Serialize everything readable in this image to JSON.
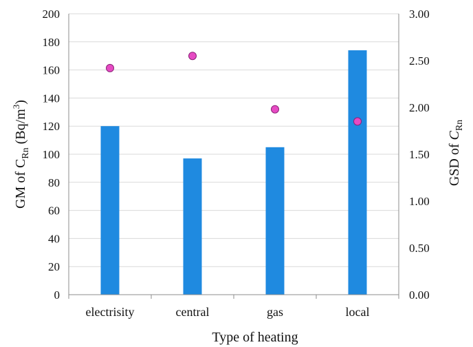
{
  "chart_data": {
    "type": "bar",
    "categories": [
      "electrisity",
      "central",
      "gas",
      "local"
    ],
    "series": [
      {
        "values": [
          120,
          97,
          105,
          174
        ],
        "color": "#1f8ae0",
        "axis": "left",
        "kind": "bar"
      },
      {
        "values": [
          2.42,
          2.55,
          1.98,
          1.85
        ],
        "color": "#e64bc3",
        "axis": "right",
        "kind": "scatter"
      }
    ],
    "xlabel": "Type  of heating",
    "ylabel": {
      "main": "GM of C",
      "sub": "Rn",
      "unit": " (Bq/m",
      "sup": "3",
      "end": ")"
    },
    "y2label": {
      "main": "GSD of ",
      "italic": "C",
      "sub": "Rn"
    },
    "ylim": [
      0,
      200
    ],
    "y2lim": [
      0,
      3
    ],
    "yticks": [
      "0",
      "20",
      "40",
      "60",
      "80",
      "100",
      "120",
      "140",
      "160",
      "180",
      "200"
    ],
    "y2ticks": [
      "0.00",
      "0.50",
      "1.00",
      "1.50",
      "2.00",
      "2.50",
      "3.00"
    ],
    "grid": true
  }
}
